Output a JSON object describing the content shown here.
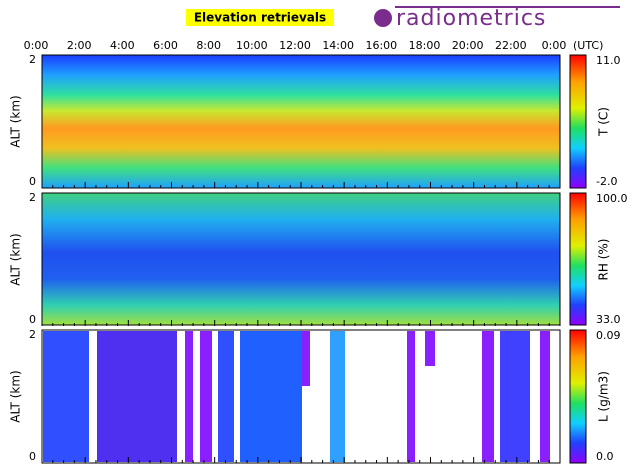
{
  "header": {
    "title": "Elevation retrievals",
    "logo": "radiometrics"
  },
  "time_axis": {
    "labels": [
      "0:00",
      "2:00",
      "4:00",
      "6:00",
      "8:00",
      "10:00",
      "12:00",
      "14:00",
      "16:00",
      "18:00",
      "20:00",
      "22:00",
      "0:00"
    ],
    "unit": "(UTC)"
  },
  "panels": [
    {
      "y_label": "ALT (km)",
      "y_ticks": [
        "2",
        "0"
      ],
      "colorbar": {
        "label": "T (C)",
        "max": "11.0",
        "min": "-2.0"
      }
    },
    {
      "y_label": "ALT (km)",
      "y_ticks": [
        "2",
        "0"
      ],
      "colorbar": {
        "label": "RH (%)",
        "max": "100.0",
        "min": "33.0"
      }
    },
    {
      "y_label": "ALT (km)",
      "y_ticks": [
        "2",
        "0"
      ],
      "colorbar": {
        "label": "L (g/m3)",
        "max": "0.09",
        "min": "0.0"
      }
    }
  ]
}
